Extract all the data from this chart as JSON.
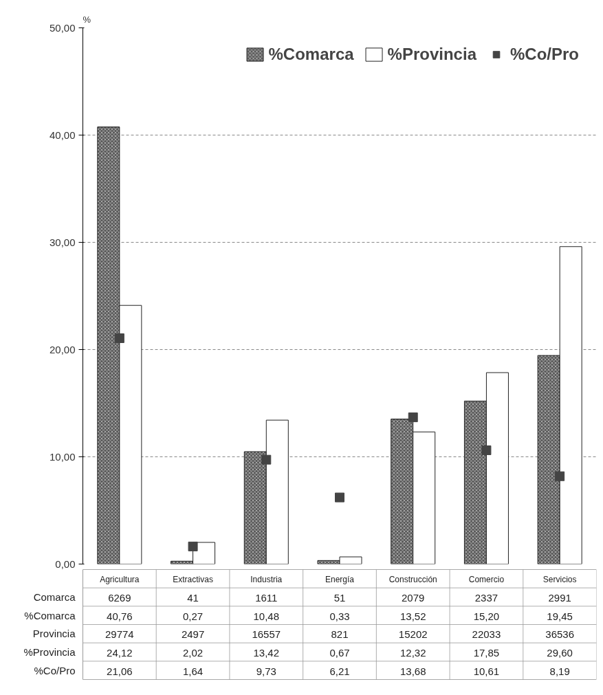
{
  "chart_data": {
    "type": "bar",
    "ylabel": "%",
    "categories": [
      "Agricultura",
      "Extractivas",
      "Industria",
      "Energía",
      "Construcción",
      "Comercio",
      "Servicios"
    ],
    "series": [
      {
        "name": "%Comarca",
        "color": "#5a5a5a",
        "values": [
          40.76,
          0.27,
          10.48,
          0.33,
          13.52,
          15.2,
          19.45
        ],
        "value_labels": [
          "40,76",
          "0,27",
          "10,48",
          "0,33",
          "13,52",
          "15,20",
          "19,45"
        ]
      },
      {
        "name": "%Provincia",
        "color": "#ffffff",
        "values": [
          24.12,
          2.02,
          13.42,
          0.67,
          12.32,
          17.85,
          29.6
        ],
        "value_labels": [
          "24,12",
          "2,02",
          "13,42",
          "0,67",
          "12,32",
          "17,85",
          "29,60"
        ]
      },
      {
        "name": "%Co/Pro",
        "type": "scatter",
        "marker": "square",
        "color": "#444444",
        "values": [
          21.06,
          1.64,
          9.73,
          6.21,
          13.68,
          10.61,
          8.19
        ],
        "value_labels": [
          "21,06",
          "1,64",
          "9,73",
          "6,21",
          "13,68",
          "10,61",
          "8,19"
        ]
      }
    ],
    "annotations": [
      "Comarca",
      "6269",
      "41",
      "1611",
      "51",
      "2079",
      "2337",
      "2991",
      "Provincia",
      "29774",
      "2497",
      "16557",
      "821",
      "15202",
      "22033",
      "36536"
    ],
    "ylim": [
      0,
      50
    ],
    "yticks": [
      {
        "value": 0,
        "label": "0,00"
      },
      {
        "value": 10,
        "label": "10,00"
      },
      {
        "value": 20,
        "label": "20,00"
      },
      {
        "value": 30,
        "label": "30,00"
      },
      {
        "value": 40,
        "label": "40,00"
      },
      {
        "value": 50,
        "label": "50,00"
      }
    ],
    "grid": "y",
    "legend": "top right",
    "tick_labels": "y"
  }
}
